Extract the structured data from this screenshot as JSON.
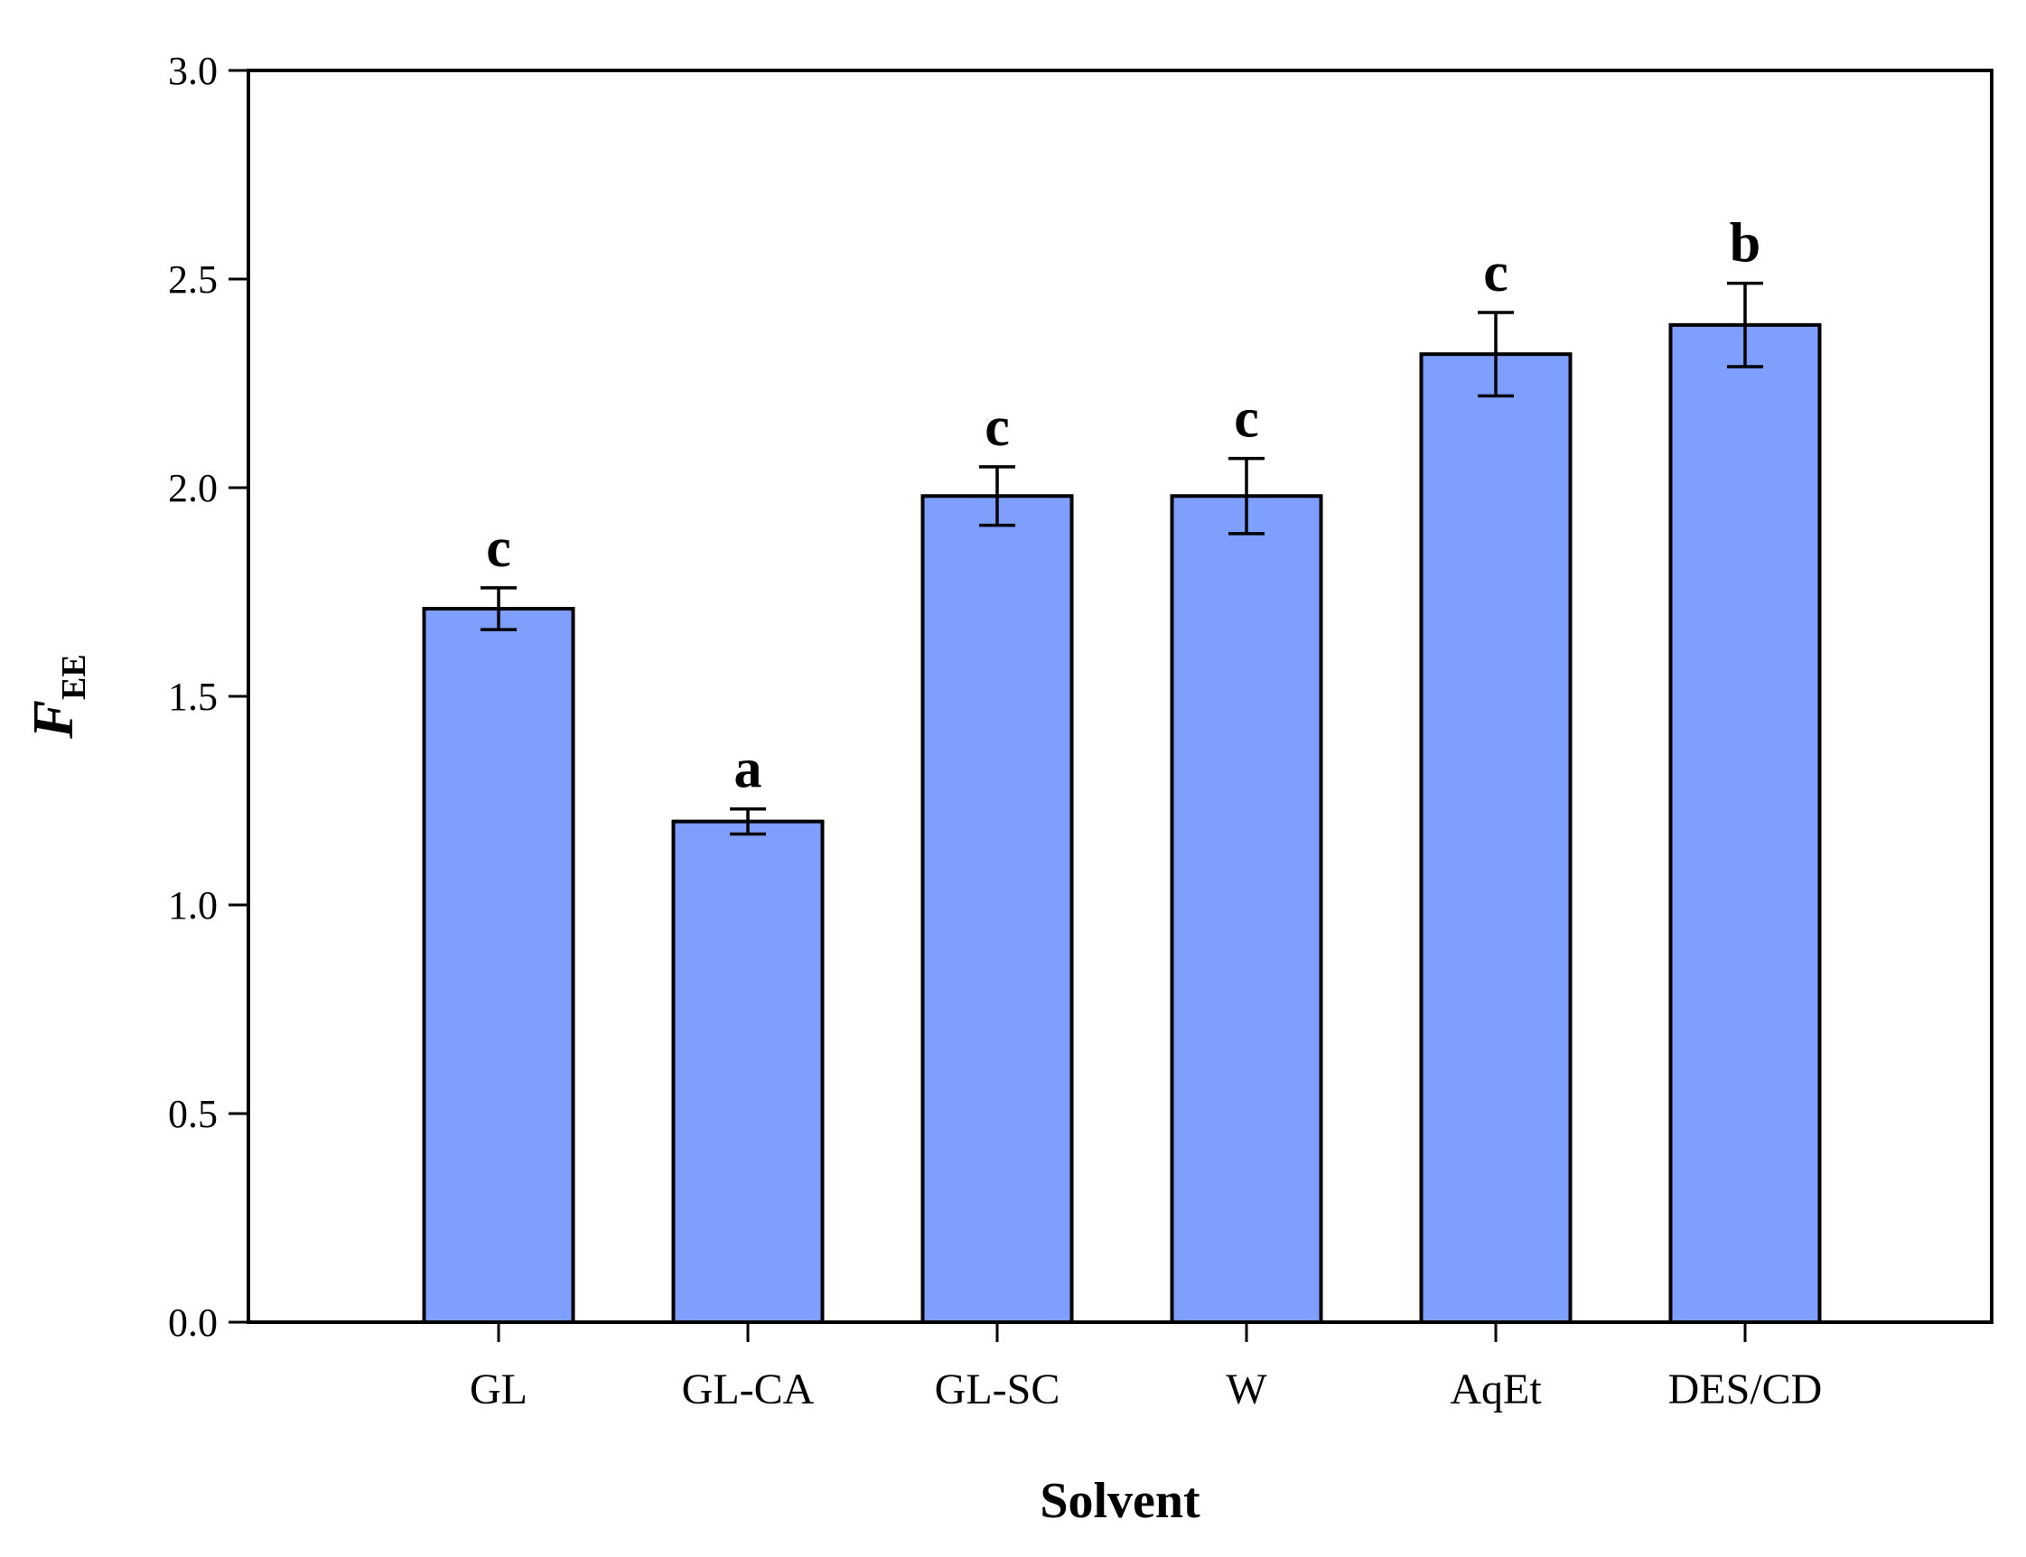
{
  "chart_data": {
    "type": "bar",
    "categories": [
      "GL",
      "GL-CA",
      "GL-SC",
      "W",
      "AqEt",
      "DES/CD"
    ],
    "values": [
      1.71,
      1.2,
      1.98,
      1.98,
      2.32,
      2.39
    ],
    "errors": [
      0.05,
      0.03,
      0.07,
      0.09,
      0.1,
      0.1
    ],
    "significance": [
      "c",
      "a",
      "c",
      "c",
      "c",
      "b"
    ],
    "xlabel": "Solvent",
    "ylabel_main": "F",
    "ylabel_sub": "EE",
    "ylim": [
      0,
      3.0
    ],
    "yticks": [
      "0.0",
      "0.5",
      "1.0",
      "1.5",
      "2.0",
      "2.5",
      "3.0"
    ],
    "ytick_values": [
      0,
      0.5,
      1.0,
      1.5,
      2.0,
      2.5,
      3.0
    ],
    "bar_color": "#7f9fff",
    "edge_color": "#000000",
    "grid": false,
    "legend": "none"
  }
}
